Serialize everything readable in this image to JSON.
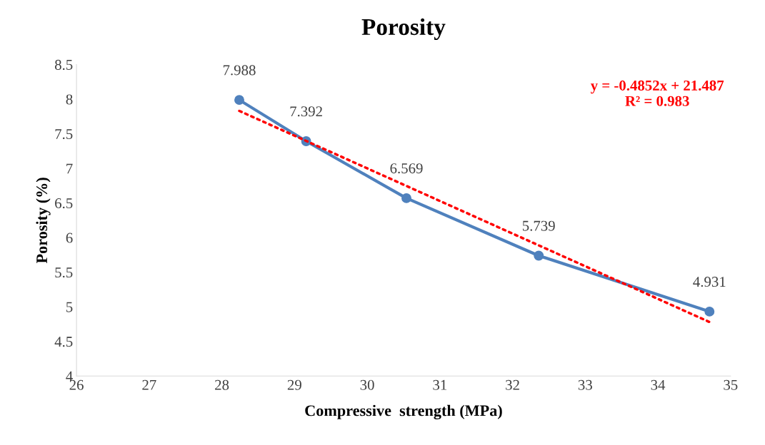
{
  "chart_data": {
    "type": "line",
    "title": "Porosity",
    "xlabel": "Compressive  strength (MPa)",
    "ylabel": "Porosity (%)",
    "xlim": [
      26,
      35
    ],
    "xticks": [
      26,
      27,
      28,
      29,
      30,
      31,
      32,
      33,
      34,
      35
    ],
    "ylim": [
      4,
      8.5
    ],
    "yticks": [
      4,
      4.5,
      5,
      5.5,
      6,
      6.5,
      7,
      7.5,
      8,
      8.5
    ],
    "grid": false,
    "legend": false,
    "marker": "circle",
    "line_style": "solid",
    "data_labels": true,
    "series": [
      {
        "color": "#4f81bd",
        "x": [
          28.24,
          29.16,
          30.54,
          32.36,
          34.71
        ],
        "values": [
          7.988,
          7.392,
          6.569,
          5.739,
          4.931
        ]
      },
      {
        "type": "line",
        "color": "#ff0000",
        "line_style": "dotted",
        "marker": "none",
        "data_labels": false,
        "x": [
          28.24,
          34.71
        ],
        "values": [
          7.83,
          4.78
        ]
      }
    ],
    "annotations": [
      "y = -0.4852x + 21.487\nR² = 0.983"
    ]
  }
}
